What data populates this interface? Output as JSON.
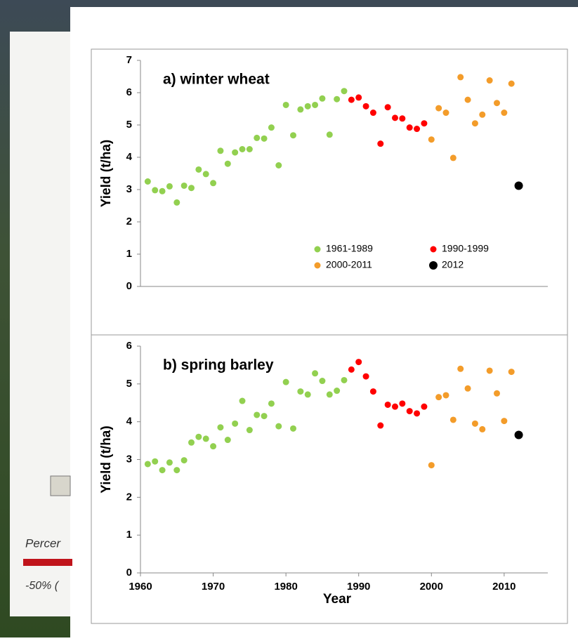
{
  "chart_data": [
    {
      "type": "scatter",
      "title": "a) winter wheat",
      "y_label": "Yield (t/ha)",
      "xlim": [
        1960,
        2016
      ],
      "ylim": [
        0,
        7
      ],
      "yticks": [
        0,
        1,
        2,
        3,
        4,
        5,
        6,
        7
      ],
      "legend": "lower right",
      "series": [
        {
          "name": "1961-1989",
          "color": "#92d050",
          "x": [
            1961,
            1962,
            1963,
            1964,
            1965,
            1966,
            1967,
            1968,
            1969,
            1970,
            1971,
            1972,
            1973,
            1974,
            1975,
            1976,
            1977,
            1978,
            1979,
            1980,
            1981,
            1982,
            1983,
            1984,
            1985,
            1986,
            1987,
            1988
          ],
          "values": [
            3.25,
            2.98,
            2.95,
            3.1,
            2.6,
            3.12,
            3.05,
            3.62,
            3.48,
            3.2,
            4.2,
            3.8,
            4.15,
            4.25,
            4.25,
            4.6,
            4.58,
            4.92,
            3.75,
            5.62,
            4.68,
            5.48,
            5.58,
            5.62,
            5.82,
            4.7,
            5.8,
            6.05
          ]
        },
        {
          "name": "1990-1999",
          "color": "#ff0000",
          "x": [
            1989,
            1990,
            1991,
            1992,
            1993,
            1994,
            1995,
            1996,
            1997,
            1998,
            1999
          ],
          "values": [
            5.78,
            5.85,
            5.58,
            5.38,
            4.42,
            5.55,
            5.22,
            5.2,
            4.92,
            4.88,
            5.05
          ]
        },
        {
          "name": "2000-2011",
          "color": "#f39c2a",
          "x": [
            2000,
            2001,
            2002,
            2003,
            2004,
            2005,
            2006,
            2007,
            2008,
            2009,
            2010,
            2011
          ],
          "values": [
            4.55,
            5.52,
            5.38,
            3.98,
            6.48,
            5.78,
            5.05,
            5.32,
            6.38,
            5.68,
            5.38,
            6.28
          ]
        },
        {
          "name": "2012",
          "color": "#000000",
          "x": [
            2012
          ],
          "values": [
            3.12
          ]
        }
      ]
    },
    {
      "type": "scatter",
      "title": "b) spring barley",
      "x_label": "Year",
      "y_label": "Yield (t/ha)",
      "xlim": [
        1960,
        2016
      ],
      "xticks": [
        1960,
        1970,
        1980,
        1990,
        2000,
        2010
      ],
      "ylim": [
        0,
        6
      ],
      "yticks": [
        0,
        1,
        2,
        3,
        4,
        5,
        6
      ],
      "series": [
        {
          "color": "#92d050",
          "x": [
            1961,
            1962,
            1963,
            1964,
            1965,
            1966,
            1967,
            1968,
            1969,
            1970,
            1971,
            1972,
            1973,
            1974,
            1975,
            1976,
            1977,
            1978,
            1979,
            1980,
            1981,
            1982,
            1983,
            1984,
            1985,
            1986,
            1987,
            1988
          ],
          "values": [
            2.88,
            2.95,
            2.72,
            2.92,
            2.72,
            2.98,
            3.45,
            3.6,
            3.55,
            3.35,
            3.85,
            3.52,
            3.95,
            4.55,
            3.78,
            4.18,
            4.15,
            4.48,
            3.88,
            5.05,
            3.82,
            4.8,
            4.72,
            5.28,
            5.08,
            4.72,
            4.82,
            5.1
          ]
        },
        {
          "color": "#ff0000",
          "x": [
            1989,
            1990,
            1991,
            1992,
            1993,
            1994,
            1995,
            1996,
            1997,
            1998,
            1999
          ],
          "values": [
            5.38,
            5.58,
            5.2,
            4.8,
            3.9,
            4.45,
            4.4,
            4.48,
            4.28,
            4.22,
            4.4
          ]
        },
        {
          "color": "#f39c2a",
          "x": [
            2000,
            2001,
            2002,
            2003,
            2004,
            2005,
            2006,
            2007,
            2008,
            2009,
            2010,
            2011
          ],
          "values": [
            2.85,
            4.65,
            4.7,
            4.05,
            5.4,
            4.88,
            3.95,
            3.8,
            5.35,
            4.75,
            4.02,
            5.32
          ]
        },
        {
          "color": "#000000",
          "x": [
            2012
          ],
          "values": [
            3.65
          ]
        }
      ]
    }
  ],
  "background_panel": {
    "texts": [
      "Percer",
      "-50% ("
    ]
  }
}
